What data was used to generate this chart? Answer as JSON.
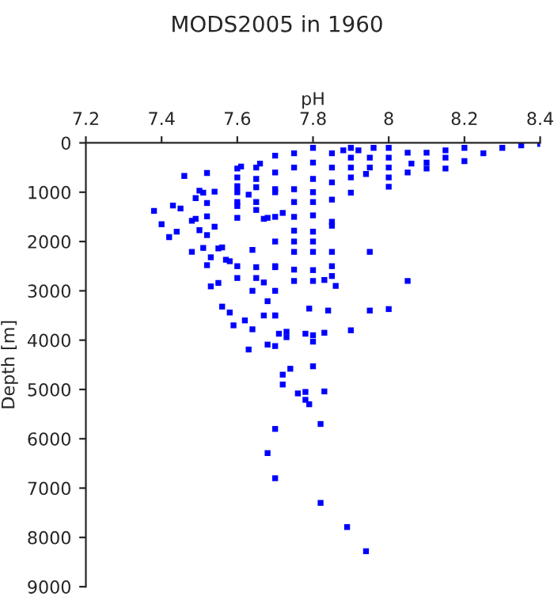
{
  "chart_data": {
    "type": "scatter",
    "title": "MODS2005 in 1960",
    "xlabel": "pH",
    "ylabel": "Depth [m]",
    "xlim": [
      7.2,
      8.4
    ],
    "xticks": [
      7.2,
      7.4,
      7.6,
      7.8,
      8,
      8.2,
      8.4
    ],
    "ylim": [
      9000,
      0
    ],
    "yticks": [
      0,
      1000,
      2000,
      3000,
      4000,
      5000,
      6000,
      7000,
      8000,
      9000
    ],
    "grid": false,
    "marker": "square",
    "legend": false,
    "series": [
      {
        "color": "#0000ff",
        "x": [
          7.59,
          7.62,
          7.64,
          7.67,
          7.7,
          7.63,
          7.68,
          7.7,
          7.71,
          7.73,
          7.73,
          7.78,
          7.8,
          7.8,
          7.83,
          7.9,
          7.74,
          7.72,
          7.72,
          7.8,
          7.76,
          7.78,
          7.78,
          7.79,
          7.83,
          7.82,
          7.7,
          7.68,
          7.7,
          7.82,
          7.89,
          7.94,
          7.38,
          7.4,
          7.42,
          7.43,
          7.45,
          7.44,
          7.46,
          7.48,
          7.48,
          7.49,
          7.5,
          7.49,
          7.5,
          7.51,
          7.52,
          7.52,
          7.52,
          7.52,
          7.51,
          7.52,
          7.53,
          7.54,
          7.54,
          7.55,
          7.56,
          7.57,
          7.55,
          7.53,
          7.56,
          7.58,
          7.58,
          7.6,
          7.6,
          7.6,
          7.6,
          7.6,
          7.6,
          7.61,
          7.63,
          7.64,
          7.64,
          7.65,
          7.65,
          7.65,
          7.65,
          7.67,
          7.67,
          7.68,
          7.68,
          7.66,
          7.7,
          7.7,
          7.7,
          7.7,
          7.72,
          7.75,
          7.75,
          7.75,
          7.75,
          7.75,
          7.79,
          7.8,
          7.8,
          7.8,
          7.8,
          7.8,
          7.83,
          7.84,
          7.85,
          7.85,
          7.85,
          7.86,
          7.85,
          7.9,
          7.9,
          7.95,
          7.95,
          7.94,
          7.96,
          8.0,
          8.0,
          8.0,
          8.05,
          8.06,
          8.1,
          8.15,
          8.2,
          8.25,
          8.3,
          8.35,
          8.4,
          7.7,
          7.7,
          7.7,
          7.7,
          7.7,
          7.7,
          7.75,
          7.75,
          7.75,
          7.75,
          7.75,
          7.8,
          7.8,
          7.8,
          7.8,
          7.8,
          7.8,
          7.85,
          7.85,
          7.85,
          7.85,
          7.85,
          7.9,
          7.9,
          7.9,
          7.95,
          7.95,
          8.0,
          8.0,
          8.0,
          8.05,
          8.05,
          8.1,
          8.1,
          8.15,
          8.15,
          8.2,
          7.65,
          7.65,
          7.65,
          7.6,
          7.6,
          7.6,
          7.88,
          7.92
        ],
        "values": [
          3700,
          3600,
          3780,
          3500,
          3500,
          4190,
          4090,
          4120,
          3870,
          3830,
          3940,
          3870,
          3900,
          4030,
          3850,
          3800,
          4580,
          4700,
          4900,
          4530,
          5080,
          5050,
          5210,
          5300,
          5040,
          5700,
          5800,
          6290,
          6800,
          7300,
          7790,
          8280,
          1380,
          1650,
          1910,
          1270,
          1330,
          1800,
          670,
          1580,
          2210,
          1540,
          1770,
          1120,
          970,
          1010,
          610,
          1220,
          1490,
          1870,
          2130,
          2480,
          2320,
          990,
          1700,
          2140,
          2120,
          2370,
          2840,
          2910,
          3320,
          2400,
          3440,
          2500,
          2740,
          1520,
          1280,
          880,
          520,
          480,
          1050,
          2170,
          3000,
          1360,
          2520,
          2740,
          730,
          2830,
          1540,
          1520,
          3210,
          420,
          260,
          940,
          2000,
          2520,
          1420,
          210,
          940,
          1780,
          2210,
          2570,
          3360,
          100,
          730,
          1470,
          2210,
          2580,
          2780,
          3400,
          210,
          1150,
          2210,
          2900,
          1680,
          100,
          1010,
          2210,
          3400,
          630,
          100,
          3370,
          890,
          100,
          2800,
          420,
          520,
          520,
          370,
          210,
          100,
          50,
          20,
          600,
          1000,
          1500,
          2500,
          3000,
          3500,
          500,
          1200,
          1500,
          2000,
          2800,
          400,
          1000,
          1200,
          1800,
          2000,
          2800,
          500,
          800,
          1600,
          2500,
          2700,
          300,
          500,
          700,
          300,
          500,
          300,
          500,
          700,
          200,
          600,
          200,
          400,
          150,
          300,
          100,
          500,
          900,
          1200,
          700,
          1000,
          1200,
          150,
          150
        ]
      }
    ]
  }
}
